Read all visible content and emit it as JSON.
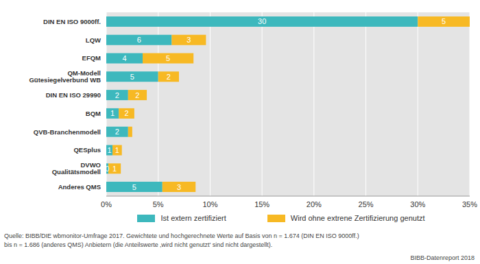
{
  "chart_data": {
    "type": "bar",
    "orientation": "horizontal",
    "stacked": true,
    "data_labels": true,
    "grid": true,
    "legend": "bottom",
    "categories": [
      "DIN EN ISO 9000ff.",
      "LQW",
      "EFQM",
      "QM-Modell Gütesiegelverbund WB",
      "DIN EN ISO 29990",
      "BQM",
      "QVB-Branchenmodell",
      "QESplus",
      "DVWO Qualitätsmodell",
      "Anderes QMS"
    ],
    "series": [
      {
        "name": "Ist extern zertifiziert",
        "color": "#3db8bd",
        "values": [
          30.0,
          6.3,
          3.5,
          5.0,
          2.1,
          1.2,
          2.1,
          0.6,
          0.2,
          5.4
        ],
        "value_labels": [
          "30",
          "6",
          "4",
          "5",
          "2",
          "1",
          "2",
          "1",
          "0",
          "5"
        ]
      },
      {
        "name": "Wird ohne extrene Zertifizierung genutzt",
        "color": "#f7b924",
        "values": [
          5.0,
          3.3,
          4.9,
          2.0,
          1.8,
          1.5,
          0.4,
          0.9,
          1.2,
          3.2
        ],
        "value_labels": [
          "5",
          "3",
          "5",
          "2",
          "2",
          "2",
          null,
          "1",
          "1",
          "3"
        ]
      }
    ],
    "xlim": [
      0,
      35
    ],
    "xticks": [
      {
        "value": 0,
        "label": "0%"
      },
      {
        "value": 5,
        "label": "5%"
      },
      {
        "value": 10,
        "label": "10%"
      },
      {
        "value": 15,
        "label": "15%"
      },
      {
        "value": 20,
        "label": "20%"
      },
      {
        "value": 25,
        "label": "25%"
      },
      {
        "value": 30,
        "label": "30%"
      },
      {
        "value": 35,
        "label": "35%"
      }
    ],
    "annotations": [
      "Quelle: BIBB/DIE wbmonitor-Umfrage 2017. Gewichtete und hochgerechnete Werte auf Basis von n = 1.674 (DIN EN ISO 9000ff.)",
      "bis n = 1.686 (anderes QMS) Anbietern (die Anteilswerte ‚wird nicht genutzt' sind nicht dargestellt).",
      "BIBB-Datenreport 2018"
    ]
  }
}
